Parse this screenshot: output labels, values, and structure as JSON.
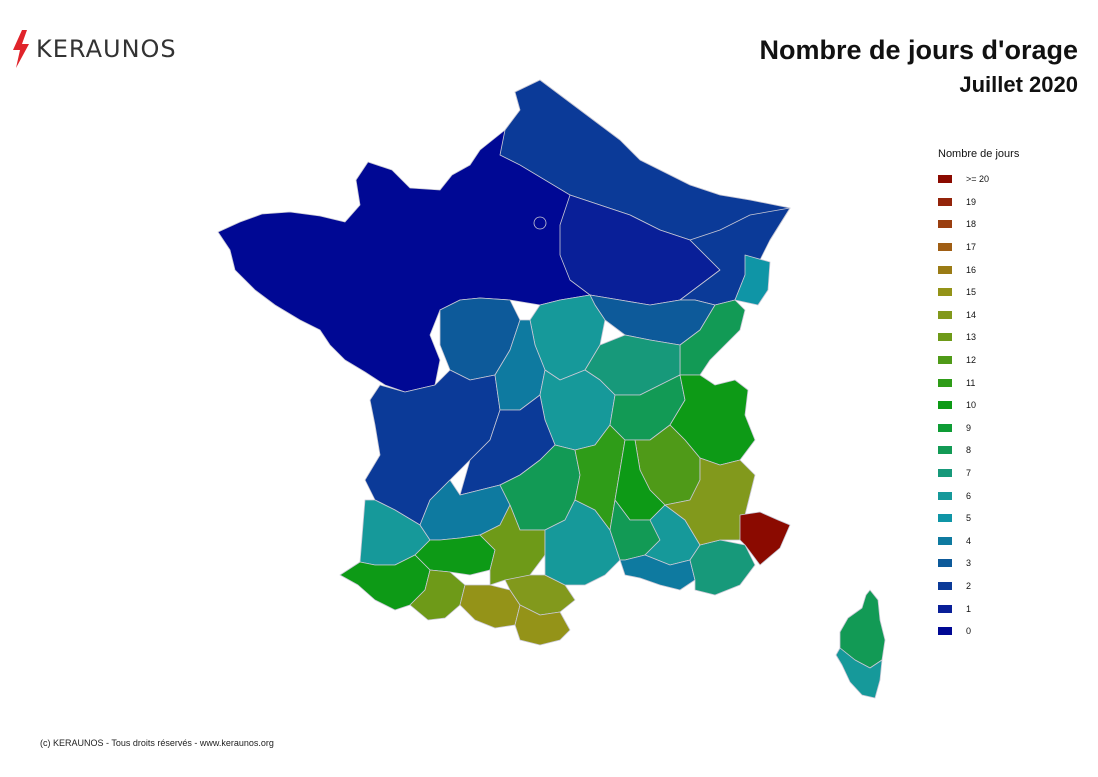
{
  "logo": {
    "text": "KERAUNOS"
  },
  "title": "Nombre de jours d'orage",
  "subtitle": "Juillet 2020",
  "legend": {
    "title": "Nombre de jours",
    "items": [
      {
        "label": ">= 20",
        "color": "#8b0a00"
      },
      {
        "label": "19",
        "color": "#93240a"
      },
      {
        "label": "18",
        "color": "#9a3f10"
      },
      {
        "label": "17",
        "color": "#a05e14"
      },
      {
        "label": "16",
        "color": "#9a7b15"
      },
      {
        "label": "15",
        "color": "#949318"
      },
      {
        "label": "14",
        "color": "#82991c"
      },
      {
        "label": "13",
        "color": "#6e9a18"
      },
      {
        "label": "12",
        "color": "#4f9a18"
      },
      {
        "label": "11",
        "color": "#2f9c18"
      },
      {
        "label": "10",
        "color": "#0d9a16"
      },
      {
        "label": "9",
        "color": "#0e9c35"
      },
      {
        "label": "8",
        "color": "#129a55"
      },
      {
        "label": "7",
        "color": "#17997a"
      },
      {
        "label": "6",
        "color": "#16999a"
      },
      {
        "label": "5",
        "color": "#0f95a6"
      },
      {
        "label": "4",
        "color": "#0e7aa0"
      },
      {
        "label": "3",
        "color": "#0d5a9a"
      },
      {
        "label": "2",
        "color": "#0b3a98"
      },
      {
        "label": "1",
        "color": "#091f98"
      },
      {
        "label": "0",
        "color": "#000894"
      }
    ]
  },
  "footer": "(c) KERAUNOS - Tous droits réservés - www.keraunos.org"
}
